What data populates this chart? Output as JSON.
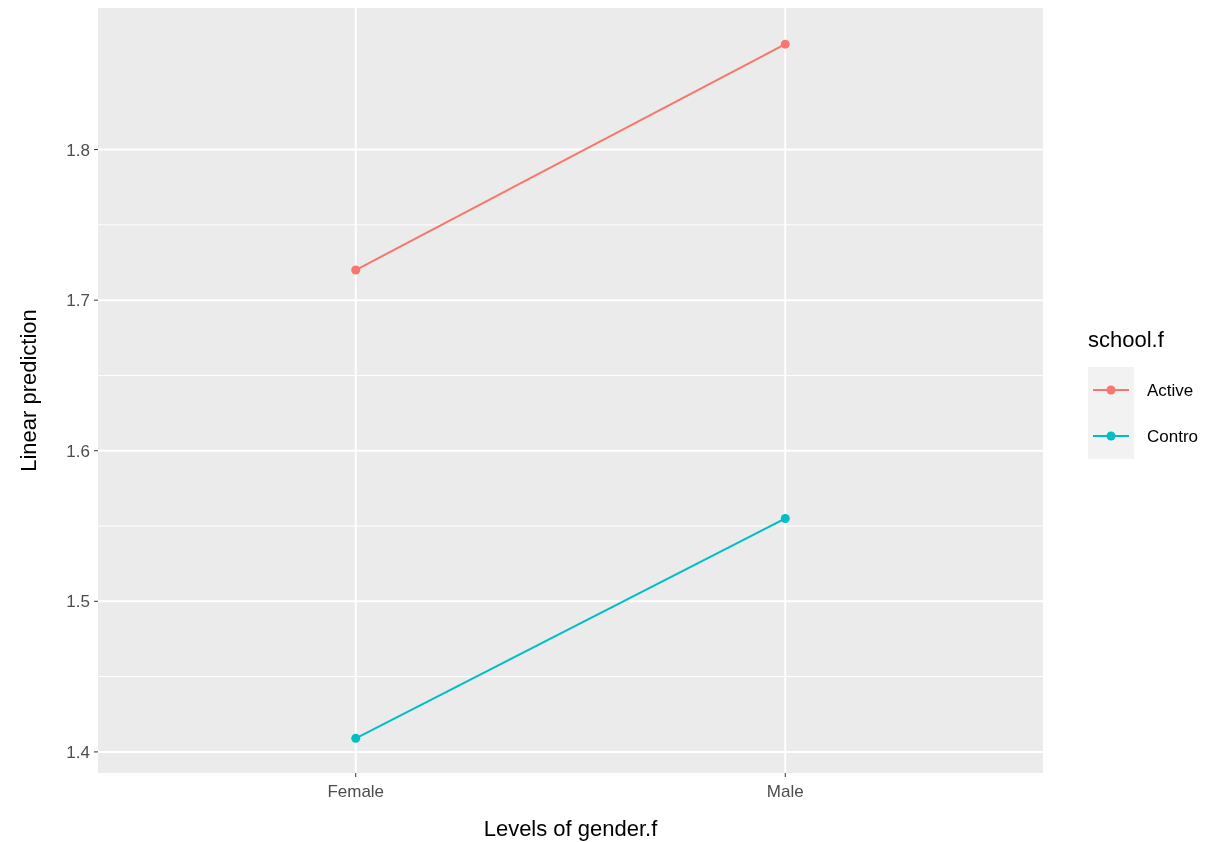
{
  "chart_data": {
    "type": "line",
    "xlabel": "Levels of gender.f",
    "ylabel": "Linear prediction",
    "legend_title": "school.f",
    "categories": [
      "Female",
      "Male"
    ],
    "series": [
      {
        "name": "Active",
        "color": "#f8766d",
        "values": [
          1.72,
          1.87
        ]
      },
      {
        "name": "Contro",
        "color": "#00bfc4",
        "values": [
          1.409,
          1.555
        ]
      }
    ],
    "ylim": [
      1.386,
      1.894
    ],
    "yticks": [
      1.4,
      1.5,
      1.6,
      1.7,
      1.8
    ],
    "grid": true,
    "legend": "right",
    "marker": "circle",
    "line_style": "solid"
  }
}
